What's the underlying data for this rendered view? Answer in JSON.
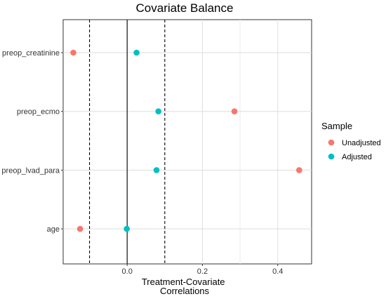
{
  "chart_data": {
    "type": "scatter",
    "title": "Covariate Balance",
    "xlabel": [
      "Treatment-Covariate",
      "Correlations"
    ],
    "ylabel": "",
    "xlim": [
      -0.17,
      0.49
    ],
    "x_ticks": [
      0.0,
      0.2,
      0.4
    ],
    "x_tick_labels": [
      "0.0",
      "0.2",
      "0.4"
    ],
    "threshold_lines": [
      -0.1,
      0.1
    ],
    "reference_line": 0,
    "categories": [
      "preop_creatinine",
      "preop_ecmo",
      "preop_lvad_para",
      "age"
    ],
    "series": [
      {
        "name": "Unadjusted",
        "color": "#F8766D",
        "values": [
          -0.143,
          0.285,
          0.457,
          -0.125
        ]
      },
      {
        "name": "Adjusted",
        "color": "#00BFC4",
        "values": [
          0.025,
          0.083,
          0.078,
          -0.001
        ]
      }
    ],
    "grid": true,
    "legend": {
      "title": "Sample",
      "position": "right"
    }
  }
}
